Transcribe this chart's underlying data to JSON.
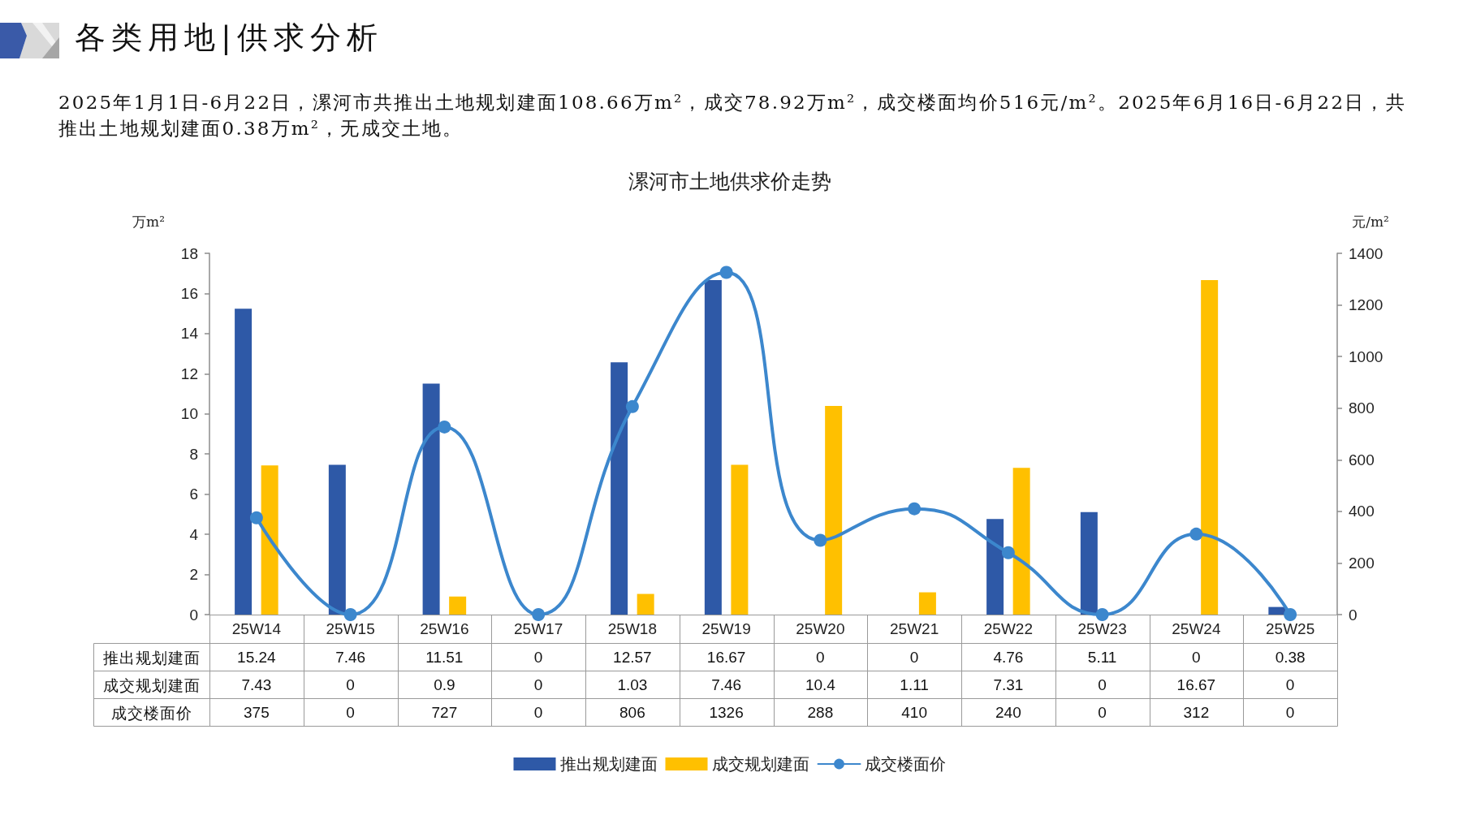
{
  "chart_data": {
    "type": "bar",
    "title": "漯河市土地供求价走势",
    "annotations": [
      "各类用地|供求分析",
      "2025年1月1日-6月22日，漯河市共推出土地规划建面108.66万m²，成交78.92万m²，成交楼面均价516元/m²。2025年6月16日-6月22日，共推出土地规划建面0.38万m²，无成交土地。"
    ],
    "ylabel": "万m²",
    "y2label": "元/m²",
    "categories": [
      "25W14",
      "25W15",
      "25W16",
      "25W17",
      "25W18",
      "25W19",
      "25W20",
      "25W21",
      "25W22",
      "25W23",
      "25W24",
      "25W25"
    ],
    "series": [
      {
        "name": "推出规划建面",
        "color": "#2e59a7",
        "values": [
          15.24,
          7.46,
          11.51,
          0,
          12.57,
          16.67,
          0,
          0,
          4.76,
          5.11,
          0,
          0.38
        ]
      },
      {
        "name": "成交规划建面",
        "color": "#ffc000",
        "values": [
          7.43,
          0,
          0.9,
          0,
          1.03,
          7.46,
          10.4,
          1.11,
          7.31,
          0,
          16.67,
          0
        ]
      },
      {
        "name": "成交楼面价",
        "type": "line",
        "axis": "y2",
        "color": "#3c87cd",
        "values": [
          375,
          0,
          727,
          0,
          806,
          1326,
          288,
          410,
          240,
          0,
          312,
          0
        ]
      }
    ],
    "ylim": [
      0,
      18
    ],
    "yticks": [
      0,
      2,
      4,
      6,
      8,
      10,
      12,
      14,
      16,
      18
    ],
    "y2lim": [
      0,
      1400
    ],
    "y2ticks": [
      0,
      200,
      400,
      600,
      800,
      1000,
      1200,
      1400
    ],
    "data_labels": true,
    "legend": "bottom",
    "marker": "circle"
  }
}
